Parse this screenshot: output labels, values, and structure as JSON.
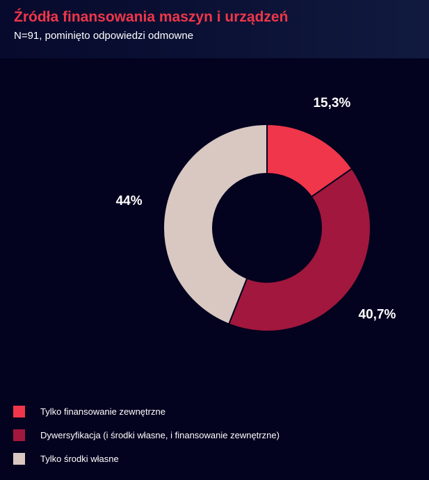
{
  "header": {
    "title": "Źródła finansowania maszyn i urządzeń",
    "subtitle": "N=91, pominięto odpowiedzi odmowne"
  },
  "colors": {
    "background": "#03021f",
    "title": "#f0364a"
  },
  "chart_data": {
    "type": "pie",
    "variant": "donut",
    "title": "",
    "categories": [
      "Tylko finansowanie zewnętrzne",
      "Dywersyfikacja (i środki własne, i finansowanie zewnętrzne)",
      "Tylko środki własne"
    ],
    "values": [
      15.3,
      40.7,
      44.0
    ],
    "data_labels": [
      "15,3%",
      "40,7%",
      "44%"
    ],
    "colors": [
      "#f0364a",
      "#a2173d",
      "#d8c8c1"
    ],
    "legend_placement": "bottom-left",
    "grid": false
  }
}
